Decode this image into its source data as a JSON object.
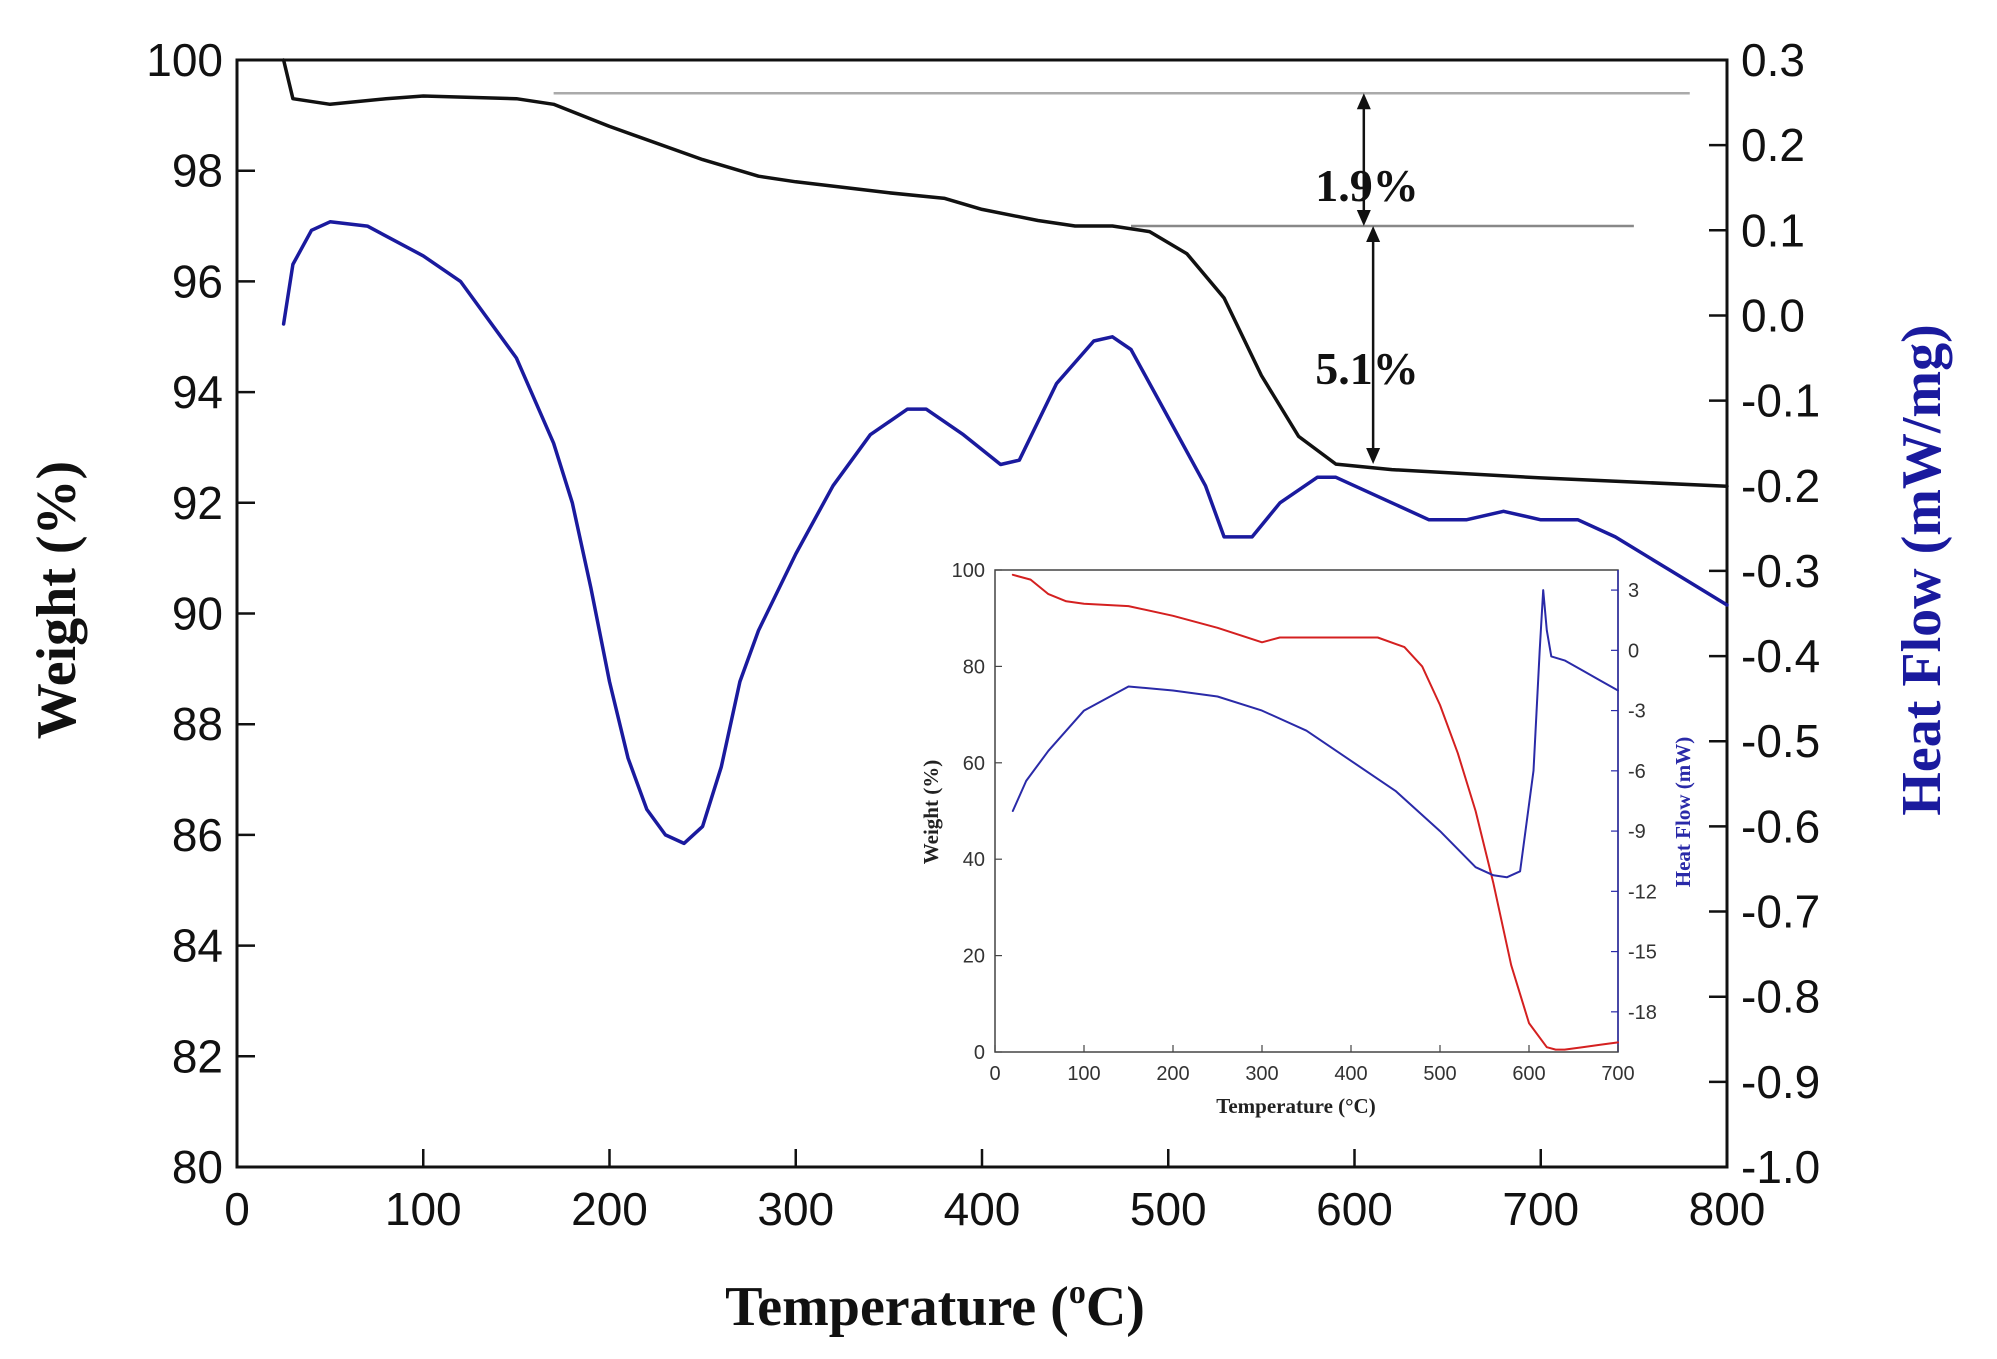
{
  "chart_data": [
    {
      "type": "line",
      "role": "main",
      "xlabel": "Temperature (°C)",
      "xlabel_main": "Temperature (",
      "xlabel_sup": "o",
      "xlabel_unit": "C)",
      "ylabel": "Weight (%)",
      "y2label": "Heat Flow (mW/mg)",
      "xlim": [
        0,
        800
      ],
      "ylim": [
        80,
        100
      ],
      "y2lim": [
        -1.0,
        0.3
      ],
      "xticks": [
        0,
        100,
        200,
        300,
        400,
        500,
        600,
        700,
        800
      ],
      "yticks": [
        80,
        82,
        84,
        86,
        88,
        90,
        92,
        94,
        96,
        98,
        100
      ],
      "y2ticks": [
        "-1.0",
        "-0.9",
        "-0.8",
        "-0.7",
        "-0.6",
        "-0.5",
        "-0.4",
        "-0.3",
        "-0.2",
        "-0.1",
        "0.0",
        "0.1",
        "0.2",
        "0.3"
      ],
      "grid": false,
      "series": [
        {
          "name": "Weight",
          "axis": "left",
          "color": "#111111",
          "x": [
            25,
            30,
            50,
            80,
            100,
            150,
            170,
            200,
            250,
            280,
            300,
            350,
            380,
            400,
            430,
            450,
            470,
            490,
            510,
            530,
            550,
            570,
            590,
            620,
            700,
            800
          ],
          "y": [
            100,
            99.3,
            99.2,
            99.3,
            99.35,
            99.3,
            99.2,
            98.8,
            98.2,
            97.9,
            97.8,
            97.6,
            97.5,
            97.3,
            97.1,
            97.0,
            97.0,
            96.9,
            96.5,
            95.7,
            94.3,
            93.2,
            92.7,
            92.6,
            92.45,
            92.3
          ]
        },
        {
          "name": "Heat Flow",
          "axis": "right",
          "color": "#1a1a9e",
          "x": [
            25,
            30,
            40,
            50,
            70,
            100,
            120,
            150,
            170,
            180,
            190,
            200,
            210,
            220,
            230,
            240,
            250,
            260,
            270,
            280,
            300,
            320,
            340,
            360,
            370,
            390,
            410,
            420,
            440,
            460,
            470,
            480,
            500,
            520,
            530,
            545,
            560,
            580,
            590,
            600,
            620,
            640,
            660,
            680,
            700,
            720,
            740,
            770,
            800
          ],
          "y": [
            -0.01,
            0.06,
            0.1,
            0.11,
            0.105,
            0.07,
            0.04,
            -0.05,
            -0.15,
            -0.22,
            -0.32,
            -0.43,
            -0.52,
            -0.58,
            -0.61,
            -0.62,
            -0.6,
            -0.53,
            -0.43,
            -0.37,
            -0.28,
            -0.2,
            -0.14,
            -0.11,
            -0.11,
            -0.14,
            -0.175,
            -0.17,
            -0.08,
            -0.03,
            -0.025,
            -0.04,
            -0.12,
            -0.2,
            -0.26,
            -0.26,
            -0.22,
            -0.19,
            -0.19,
            -0.2,
            -0.22,
            -0.24,
            -0.24,
            -0.23,
            -0.24,
            -0.24,
            -0.26,
            -0.3,
            -0.34
          ]
        }
      ],
      "annotations": [
        {
          "text": "1.9%",
          "x_from": 605,
          "y_from": 99.4,
          "y_to": 97.0
        },
        {
          "text": "5.1%",
          "x_from": 610,
          "y_from": 97.0,
          "y_to": 92.7
        }
      ],
      "reference_lines": [
        {
          "y": 99.4,
          "x_start": 170,
          "x_end": 780,
          "color": "#aaaaaa"
        },
        {
          "y": 97.0,
          "x_start": 480,
          "x_end": 750,
          "color": "#888888"
        }
      ]
    },
    {
      "type": "line",
      "role": "inset",
      "xlabel": "Temperature (°C)",
      "ylabel": "Weight (%)",
      "y2label": "Heat Flow (mW)",
      "xlim": [
        0,
        700
      ],
      "ylim": [
        0,
        100
      ],
      "y2lim": [
        -20,
        4
      ],
      "xticks": [
        0,
        100,
        200,
        300,
        400,
        500,
        600,
        700
      ],
      "yticks": [
        0,
        20,
        40,
        60,
        80,
        100
      ],
      "y2ticks": [
        "-18",
        "-15",
        "-12",
        "-9",
        "-6",
        "-3",
        "0",
        "3"
      ],
      "grid": false,
      "series": [
        {
          "name": "Weight",
          "axis": "left",
          "color": "#d42020",
          "x": [
            20,
            40,
            60,
            80,
            100,
            150,
            200,
            250,
            300,
            320,
            350,
            400,
            430,
            460,
            480,
            500,
            520,
            540,
            560,
            580,
            600,
            620,
            630,
            640,
            660,
            680,
            700
          ],
          "y": [
            99,
            98,
            95,
            93.5,
            93,
            92.5,
            90.5,
            88,
            85,
            86,
            86,
            86,
            86,
            84,
            80,
            72,
            62,
            50,
            35,
            18,
            6,
            1,
            0.5,
            0.5,
            1,
            1.5,
            2
          ]
        },
        {
          "name": "Heat Flow",
          "axis": "right",
          "color": "#2a2aa8",
          "x": [
            20,
            35,
            60,
            100,
            150,
            200,
            250,
            300,
            350,
            400,
            450,
            500,
            540,
            560,
            575,
            590,
            605,
            612,
            616,
            620,
            625,
            640,
            660,
            680,
            700
          ],
          "y": [
            -8,
            -6.5,
            -5,
            -3,
            -1.8,
            -2,
            -2.3,
            -3,
            -4,
            -5.5,
            -7,
            -9,
            -10.8,
            -11.2,
            -11.3,
            -11,
            -6,
            0,
            3,
            1,
            -0.3,
            -0.5,
            -1,
            -1.5,
            -2
          ]
        }
      ]
    }
  ]
}
